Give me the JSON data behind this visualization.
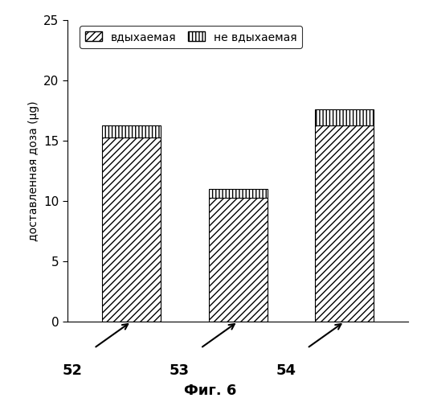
{
  "categories": [
    "52",
    "53",
    "54"
  ],
  "inhaled_values": [
    15.3,
    10.3,
    16.3
  ],
  "not_inhaled_values": [
    1.0,
    0.7,
    1.3
  ],
  "ylabel": "доставленная доза (μg)",
  "ylim": [
    0,
    25
  ],
  "yticks": [
    0,
    5,
    10,
    15,
    20,
    25
  ],
  "legend_inhaled": "вдыхаемая",
  "legend_not_inhaled": "не вдыхаемая",
  "caption": "Фиг. 6",
  "bar_positions": [
    1,
    2,
    3
  ],
  "bar_width": 0.55,
  "background_color": "#ffffff",
  "hatch_inhaled": "////",
  "hatch_not_inhaled": "||||",
  "arrow_labels": [
    "52",
    "53",
    "54"
  ]
}
